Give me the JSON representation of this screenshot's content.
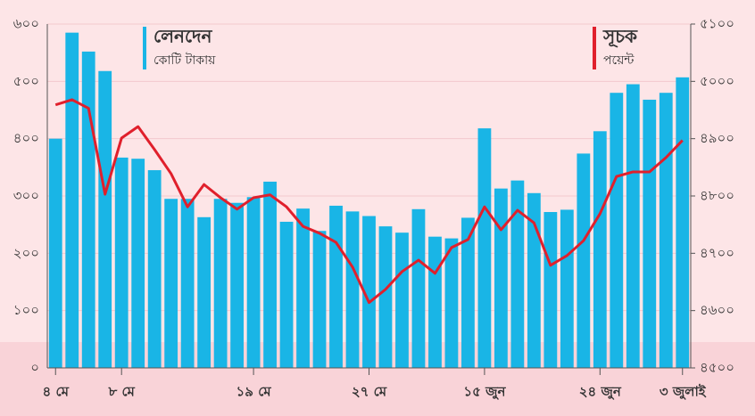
{
  "chart_data": {
    "type": "bar_line",
    "categories": [
      "৪ মে",
      null,
      null,
      null,
      "৮ মে",
      null,
      null,
      null,
      null,
      null,
      null,
      null,
      "১৯ মে",
      null,
      null,
      null,
      null,
      null,
      null,
      "২৭ মে",
      null,
      null,
      null,
      null,
      null,
      null,
      "১৫ জুন",
      null,
      null,
      null,
      null,
      null,
      null,
      "২৪ জুন",
      null,
      null,
      null,
      null,
      "৩ জুলাই"
    ],
    "series": [
      {
        "name": "লেনদেন",
        "unit": "কোটি টাকায়",
        "type": "bar",
        "color": "#19b5e6",
        "values": [
          400,
          585,
          552,
          518,
          367,
          365,
          345,
          295,
          295,
          263,
          295,
          288,
          298,
          325,
          255,
          278,
          239,
          283,
          273,
          265,
          247,
          236,
          277,
          229,
          226,
          262,
          418,
          313,
          327,
          305,
          272,
          276,
          374,
          413,
          480,
          495,
          468,
          480,
          507
        ]
      },
      {
        "name": "সূচক",
        "unit": "পয়েন্ট",
        "type": "line",
        "axis": "y2",
        "color": "#e0202c",
        "values": [
          4959,
          4968,
          4953,
          4803,
          4901,
          4921,
          4881,
          4839,
          4781,
          4820,
          4797,
          4777,
          4797,
          4802,
          4781,
          4747,
          4735,
          4719,
          4676,
          4614,
          4637,
          4668,
          4688,
          4665,
          4710,
          4724,
          4781,
          4741,
          4775,
          4753,
          4679,
          4696,
          4722,
          4769,
          4834,
          4842,
          4842,
          4867,
          4897
        ]
      }
    ],
    "ylim": [
      0,
      600
    ],
    "yticks": [
      {
        "value": 0,
        "label": "০"
      },
      {
        "value": 100,
        "label": "১০০"
      },
      {
        "value": 200,
        "label": "২০০"
      },
      {
        "value": 300,
        "label": "৩০০"
      },
      {
        "value": 400,
        "label": "৪০০"
      },
      {
        "value": 500,
        "label": "৫০০"
      },
      {
        "value": 600,
        "label": "৬০০"
      }
    ],
    "y2lim": [
      4500,
      5100
    ],
    "y2ticks": [
      {
        "value": 4500,
        "label": "৪৫০০"
      },
      {
        "value": 4600,
        "label": "৪৬০০"
      },
      {
        "value": 4700,
        "label": "৪৭০০"
      },
      {
        "value": 4800,
        "label": "৪৮০০"
      },
      {
        "value": 4900,
        "label": "৪৯০০"
      },
      {
        "value": 5000,
        "label": "৫০০০"
      },
      {
        "value": 5100,
        "label": "৫১০০"
      }
    ],
    "grid": true
  }
}
